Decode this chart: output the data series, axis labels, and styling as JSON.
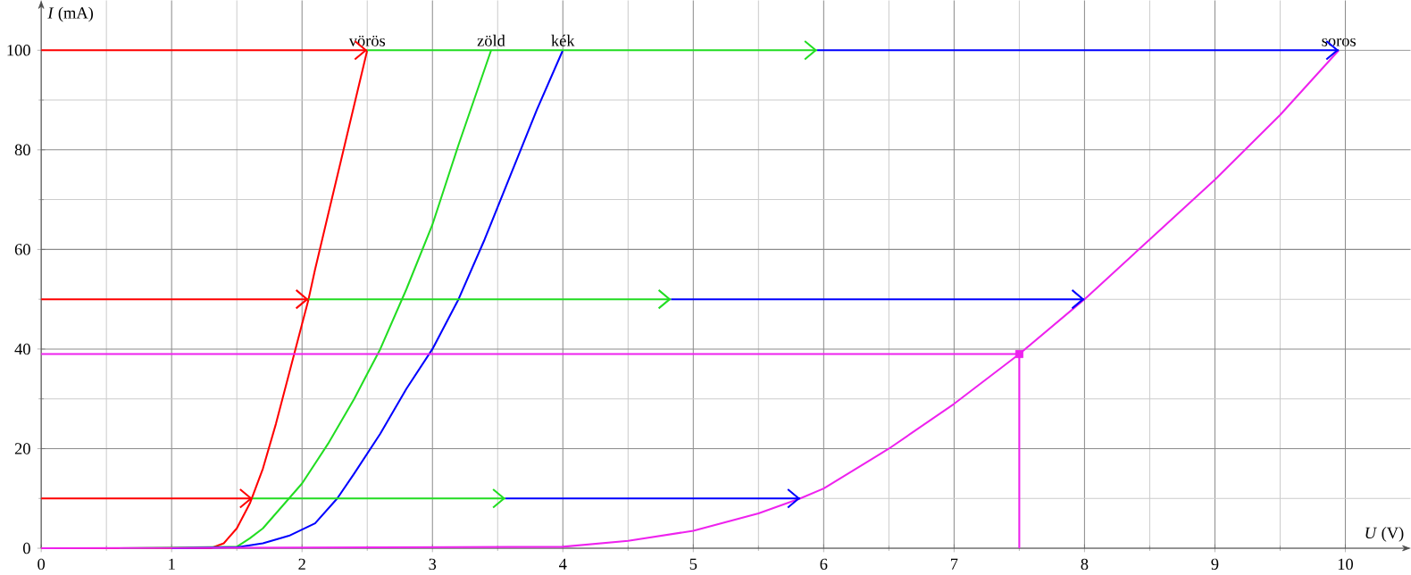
{
  "chart_data": {
    "type": "line",
    "xlabel": "*U* (V)",
    "ylabel": "*I* (mA)",
    "xlim": [
      0,
      10.5
    ],
    "ylim": [
      0,
      110
    ],
    "xticks": [
      0,
      1,
      2,
      3,
      4,
      5,
      6,
      7,
      8,
      9,
      10
    ],
    "yticks": [
      0,
      20,
      40,
      60,
      80,
      100
    ],
    "grid": true,
    "marker": "none",
    "line_style": "solid",
    "series": [
      {
        "name": "vörös",
        "color": "#ff0000",
        "x": [
          0,
          1.3,
          1.4,
          1.5,
          1.6,
          1.7,
          1.8,
          1.9,
          2.0,
          2.05,
          2.1,
          2.2,
          2.3,
          2.4,
          2.5
        ],
        "values": [
          0,
          0,
          1,
          4,
          9,
          16,
          25,
          35,
          45,
          50,
          56,
          67,
          78,
          89,
          100
        ]
      },
      {
        "name": "zöld",
        "color": "#22dd22",
        "x": [
          0.6,
          1.5,
          1.6,
          1.7,
          1.8,
          1.9,
          2.0,
          2.2,
          2.4,
          2.5,
          2.6,
          2.8,
          3.0,
          3.2,
          3.45
        ],
        "values": [
          0,
          0.3,
          2,
          4,
          7,
          10,
          13,
          21,
          30,
          35,
          40,
          52,
          65,
          81,
          100
        ]
      },
      {
        "name": "kék",
        "color": "#0000ff",
        "x": [
          1.0,
          1.5,
          1.7,
          1.9,
          2.1,
          2.27,
          2.4,
          2.6,
          2.8,
          3.0,
          3.2,
          3.4,
          3.6,
          3.8,
          4.0
        ],
        "values": [
          0,
          0.2,
          1,
          2.5,
          5,
          10,
          15,
          23,
          32,
          40,
          50,
          62,
          75,
          88,
          100
        ]
      },
      {
        "name": "soros",
        "color": "#ee22ee",
        "x": [
          0,
          4,
          4.5,
          5,
          5.5,
          5.82,
          6,
          6.5,
          7,
          7.5,
          8,
          8.5,
          9,
          9.5,
          9.95
        ],
        "values": [
          0,
          0.3,
          1.5,
          3.5,
          7,
          10,
          12,
          20,
          29,
          39,
          50,
          62,
          74,
          87,
          100
        ]
      },
      {
        "color": "#ff0000",
        "x": [
          0,
          2.5
        ],
        "values": [
          100,
          100
        ]
      },
      {
        "color": "#22dd22",
        "x": [
          2.5,
          5.95
        ],
        "values": [
          100,
          100
        ]
      },
      {
        "color": "#0000ff",
        "x": [
          5.95,
          9.95
        ],
        "values": [
          100,
          100
        ]
      },
      {
        "color": "#ff0000",
        "x": [
          0,
          2.05
        ],
        "values": [
          50,
          50
        ]
      },
      {
        "color": "#22dd22",
        "x": [
          2.05,
          4.83
        ],
        "values": [
          50,
          50
        ]
      },
      {
        "color": "#0000ff",
        "x": [
          4.83,
          8.0
        ],
        "values": [
          50,
          50
        ]
      },
      {
        "color": "#ff0000",
        "x": [
          0,
          1.62
        ],
        "values": [
          10,
          10
        ]
      },
      {
        "color": "#22dd22",
        "x": [
          1.62,
          3.56
        ],
        "values": [
          10,
          10
        ]
      },
      {
        "color": "#0000ff",
        "x": [
          3.56,
          5.82
        ],
        "values": [
          10,
          10
        ]
      },
      {
        "color": "#ee22ee",
        "x": [
          0,
          7.5,
          7.5
        ],
        "values": [
          39,
          39,
          0
        ]
      },
      {
        "type": "scatter",
        "marker": "square",
        "color": "#ee22ee",
        "x": [
          7.5
        ],
        "values": [
          39
        ]
      }
    ]
  }
}
